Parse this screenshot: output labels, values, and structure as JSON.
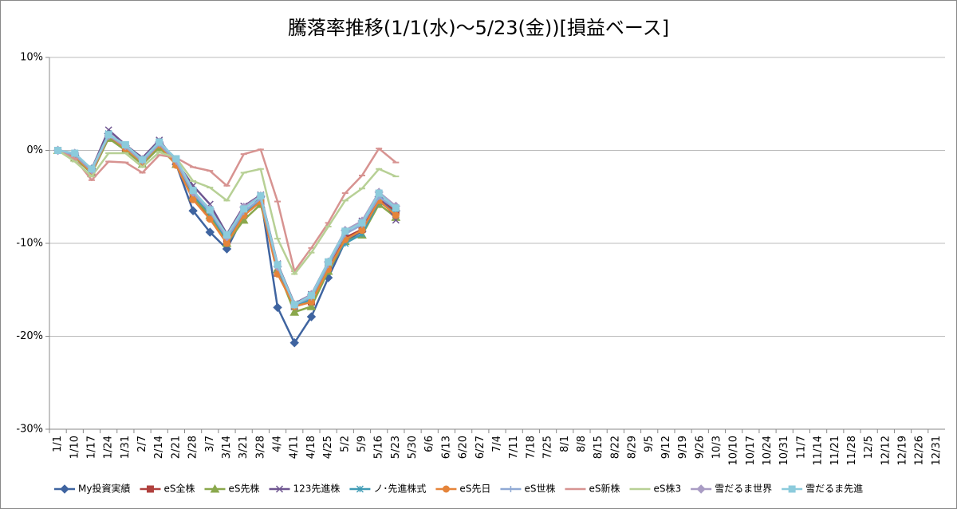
{
  "chart_data": {
    "type": "line",
    "title": "騰落率推移(1/1(水)～5/23(金))[損益ベース]",
    "categories": [
      "1/1",
      "1/10",
      "1/17",
      "1/24",
      "1/31",
      "2/7",
      "2/14",
      "2/21",
      "2/28",
      "3/7",
      "3/14",
      "3/21",
      "3/28",
      "4/4",
      "4/11",
      "4/18",
      "4/25",
      "5/2",
      "5/9",
      "5/16",
      "5/23",
      "5/30",
      "6/6",
      "6/13",
      "6/20",
      "6/27",
      "7/4",
      "7/11",
      "7/18",
      "7/25",
      "8/1",
      "8/8",
      "8/15",
      "8/22",
      "8/29",
      "9/5",
      "9/12",
      "9/19",
      "9/26",
      "10/3",
      "10/10",
      "10/17",
      "10/24",
      "10/31",
      "11/7",
      "11/14",
      "11/21",
      "11/28",
      "12/5",
      "12/12",
      "12/19",
      "12/26",
      "12/31"
    ],
    "ylim": [
      -30,
      10
    ],
    "yticks": [
      {
        "value": -30,
        "label": "-30%"
      },
      {
        "value": -20,
        "label": "-20%"
      },
      {
        "value": -10,
        "label": "-10%"
      },
      {
        "value": 0,
        "label": "0%"
      },
      {
        "value": 10,
        "label": "10%"
      }
    ],
    "grid": true,
    "legend": "bottom",
    "series": [
      {
        "name": "My投資実績",
        "color": "#3f64a0",
        "marker": "diamond",
        "values": [
          0,
          -0.5,
          -2,
          1.8,
          0.3,
          -1,
          0.8,
          -1.5,
          -6.5,
          -8.8,
          -10.6,
          -7,
          -5,
          -16.9,
          -20.7,
          -17.9,
          -13.7,
          -9.8,
          -8.7,
          -5,
          -6.5,
          null,
          null,
          null,
          null,
          null,
          null,
          null,
          null,
          null,
          null,
          null,
          null,
          null,
          null,
          null,
          null,
          null,
          null,
          null,
          null,
          null,
          null,
          null,
          null,
          null,
          null,
          null,
          null,
          null,
          null,
          null,
          null
        ]
      },
      {
        "name": "eS全株",
        "color": "#b0403d",
        "marker": "square",
        "values": [
          0,
          -0.6,
          -2.3,
          1.5,
          0.2,
          -1.3,
          0.6,
          -1.4,
          -5.2,
          -7.2,
          -9.8,
          -7,
          -5.5,
          -13.2,
          -16.8,
          -16.3,
          -12.5,
          -9.4,
          -8.5,
          -5.2,
          -6.6,
          null,
          null,
          null,
          null,
          null,
          null,
          null,
          null,
          null,
          null,
          null,
          null,
          null,
          null,
          null,
          null,
          null,
          null,
          null,
          null,
          null,
          null,
          null,
          null,
          null,
          null,
          null,
          null,
          null,
          null,
          null,
          null
        ]
      },
      {
        "name": "eS先株",
        "color": "#8aa84c",
        "marker": "triangle",
        "values": [
          0,
          -0.8,
          -2.5,
          1.3,
          0,
          -1.5,
          0.3,
          -1.5,
          -5,
          -7,
          -10,
          -7.5,
          -5.8,
          -12.8,
          -17.4,
          -16.8,
          -13,
          -9.8,
          -9.1,
          -5.8,
          -7.2,
          null,
          null,
          null,
          null,
          null,
          null,
          null,
          null,
          null,
          null,
          null,
          null,
          null,
          null,
          null,
          null,
          null,
          null,
          null,
          null,
          null,
          null,
          null,
          null,
          null,
          null,
          null,
          null,
          null,
          null,
          null,
          null
        ]
      },
      {
        "name": "123先進株",
        "color": "#6e5590",
        "marker": "x",
        "values": [
          0,
          -0.4,
          -2,
          2.2,
          0.6,
          -0.8,
          1.1,
          -1.2,
          -3.8,
          -5.8,
          -9,
          -6,
          -4.8,
          -12.2,
          -16.5,
          -15.5,
          -12,
          -8.8,
          -7.6,
          -4.6,
          -7.5,
          null,
          null,
          null,
          null,
          null,
          null,
          null,
          null,
          null,
          null,
          null,
          null,
          null,
          null,
          null,
          null,
          null,
          null,
          null,
          null,
          null,
          null,
          null,
          null,
          null,
          null,
          null,
          null,
          null,
          null,
          null,
          null
        ]
      },
      {
        "name": "ノ･先進株式",
        "color": "#3f9bb5",
        "marker": "star",
        "values": [
          0,
          -0.5,
          -2.3,
          1.8,
          0.4,
          -1,
          0.8,
          -1.2,
          -4.8,
          -6.8,
          -9.6,
          -6.8,
          -5.2,
          -12.8,
          -16.8,
          -16,
          -12.5,
          -10,
          -9,
          -5.5,
          -6.8,
          null,
          null,
          null,
          null,
          null,
          null,
          null,
          null,
          null,
          null,
          null,
          null,
          null,
          null,
          null,
          null,
          null,
          null,
          null,
          null,
          null,
          null,
          null,
          null,
          null,
          null,
          null,
          null,
          null,
          null,
          null,
          null
        ]
      },
      {
        "name": "eS先日",
        "color": "#e5843a",
        "marker": "circle",
        "values": [
          0,
          -0.6,
          -2.4,
          1.6,
          0.2,
          -1.3,
          0.6,
          -1.6,
          -5.3,
          -7.4,
          -10,
          -7,
          -5.5,
          -13.3,
          -16.8,
          -16.3,
          -12.8,
          -9.6,
          -8.6,
          -5.4,
          -7,
          null,
          null,
          null,
          null,
          null,
          null,
          null,
          null,
          null,
          null,
          null,
          null,
          null,
          null,
          null,
          null,
          null,
          null,
          null,
          null,
          null,
          null,
          null,
          null,
          null,
          null,
          null,
          null,
          null,
          null,
          null,
          null
        ]
      },
      {
        "name": "eS世株",
        "color": "#8fa9d4",
        "marker": "plus",
        "values": [
          0,
          -0.5,
          -2.2,
          1.6,
          0.4,
          -1.2,
          0.7,
          -1.2,
          -4.6,
          -6.6,
          -9.4,
          -6.6,
          -5.2,
          -12.5,
          -16.6,
          -15.8,
          -12.3,
          -9,
          -8,
          -5,
          -6.3,
          null,
          null,
          null,
          null,
          null,
          null,
          null,
          null,
          null,
          null,
          null,
          null,
          null,
          null,
          null,
          null,
          null,
          null,
          null,
          null,
          null,
          null,
          null,
          null,
          null,
          null,
          null,
          null,
          null,
          null,
          null,
          null
        ]
      },
      {
        "name": "eS新株",
        "color": "#d79391",
        "marker": "dash",
        "values": [
          0,
          -0.9,
          -3.2,
          -1.2,
          -1.3,
          -2.4,
          -0.5,
          -0.8,
          -1.8,
          -2.2,
          -3.8,
          -0.4,
          0.1,
          -5.5,
          -13,
          -10.5,
          -7.8,
          -4.6,
          -2.7,
          0.2,
          -1.3,
          null,
          null,
          null,
          null,
          null,
          null,
          null,
          null,
          null,
          null,
          null,
          null,
          null,
          null,
          null,
          null,
          null,
          null,
          null,
          null,
          null,
          null,
          null,
          null,
          null,
          null,
          null,
          null,
          null,
          null,
          null,
          null
        ]
      },
      {
        "name": "eS株3",
        "color": "#b7d095",
        "marker": "dash",
        "values": [
          0,
          -1.2,
          -2.8,
          -0.3,
          -0.3,
          -1.8,
          -0.2,
          -0.8,
          -3.3,
          -4,
          -5.4,
          -2.4,
          -2,
          -9.5,
          -13.3,
          -11,
          -8.2,
          -5.4,
          -4.1,
          -2,
          -2.8,
          null,
          null,
          null,
          null,
          null,
          null,
          null,
          null,
          null,
          null,
          null,
          null,
          null,
          null,
          null,
          null,
          null,
          null,
          null,
          null,
          null,
          null,
          null,
          null,
          null,
          null,
          null,
          null,
          null,
          null,
          null,
          null
        ]
      },
      {
        "name": "雪だるま世界",
        "color": "#a99cc4",
        "marker": "diamond",
        "values": [
          0,
          -0.3,
          -2.1,
          1.6,
          0.5,
          -1,
          0.9,
          -1,
          -4.5,
          -6.3,
          -9.3,
          -6.1,
          -4.9,
          -12.5,
          -16.6,
          -15.5,
          -12,
          -8.6,
          -7.6,
          -4.5,
          -6,
          null,
          null,
          null,
          null,
          null,
          null,
          null,
          null,
          null,
          null,
          null,
          null,
          null,
          null,
          null,
          null,
          null,
          null,
          null,
          null,
          null,
          null,
          null,
          null,
          null,
          null,
          null,
          null,
          null,
          null,
          null,
          null
        ]
      },
      {
        "name": "雪だるま先進",
        "color": "#8ccbdc",
        "marker": "square",
        "values": [
          0,
          -0.3,
          -2,
          1.7,
          0.6,
          -1,
          0.9,
          -0.9,
          -4.3,
          -6.4,
          -9.1,
          -6.3,
          -4.9,
          -12.3,
          -16.6,
          -15.6,
          -12,
          -8.7,
          -7.8,
          -4.6,
          -6.2,
          null,
          null,
          null,
          null,
          null,
          null,
          null,
          null,
          null,
          null,
          null,
          null,
          null,
          null,
          null,
          null,
          null,
          null,
          null,
          null,
          null,
          null,
          null,
          null,
          null,
          null,
          null,
          null,
          null,
          null,
          null,
          null
        ]
      }
    ]
  }
}
